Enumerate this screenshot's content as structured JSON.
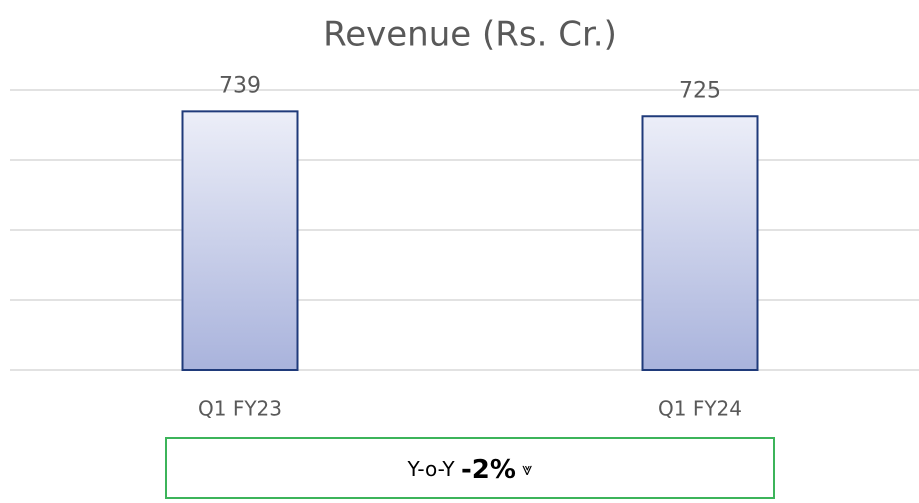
{
  "chart_data": {
    "type": "bar",
    "title": "Revenue (Rs. Cr.)",
    "categories": [
      "Q1 FY23",
      "Q1 FY24"
    ],
    "values": [
      739,
      725
    ],
    "ylim": [
      0,
      800
    ],
    "yticks": [
      0,
      200,
      400,
      600,
      800
    ],
    "grid": true,
    "color": "#a9b3dc",
    "edge_color": "#1f3a7a",
    "annotation": {
      "label": "Y-o-Y",
      "change": "-2%",
      "symbol": "⩔"
    }
  }
}
